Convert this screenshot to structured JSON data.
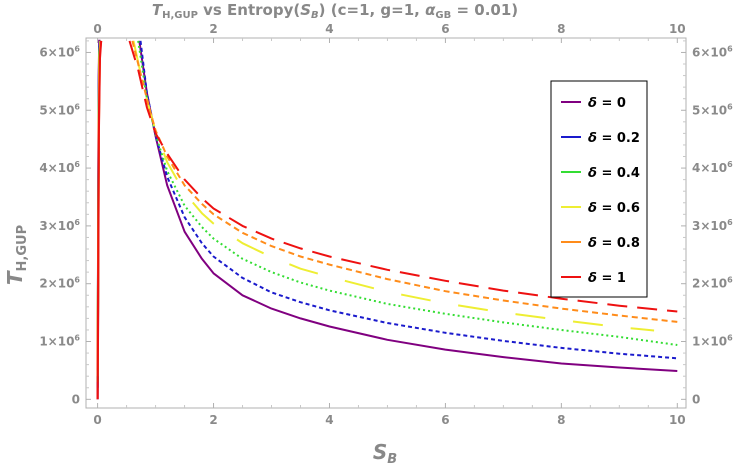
{
  "chart_data": {
    "type": "line",
    "title": {
      "prefix": "T",
      "prefix_sub": "H,GUP",
      "middle": " vs Entropy(",
      "s_main": "S",
      "s_sub": "B",
      "suffix": ") (c=1, g=1, ",
      "alpha": "α",
      "alpha_sub": "GB",
      "alpha_value": " = 0.01)"
    },
    "xlabel": {
      "main": "S",
      "sub": "B"
    },
    "ylabel": {
      "main": "T",
      "sub": "H,GUP"
    },
    "xlim": [
      -0.2,
      10.15
    ],
    "ylim": [
      -150000,
      6250000
    ],
    "x_ticks": [
      {
        "value": 0,
        "label": "0"
      },
      {
        "value": 2,
        "label": "2"
      },
      {
        "value": 4,
        "label": "4"
      },
      {
        "value": 6,
        "label": "6"
      },
      {
        "value": 8,
        "label": "8"
      },
      {
        "value": 10,
        "label": "10"
      }
    ],
    "y_ticks": [
      {
        "value": 0,
        "label": "0",
        "exp": ""
      },
      {
        "value": 1000000,
        "label": "1×10",
        "exp": "6"
      },
      {
        "value": 2000000,
        "label": "2×10",
        "exp": "6"
      },
      {
        "value": 3000000,
        "label": "3×10",
        "exp": "6"
      },
      {
        "value": 4000000,
        "label": "4×10",
        "exp": "6"
      },
      {
        "value": 5000000,
        "label": "5×10",
        "exp": "6"
      },
      {
        "value": 6000000,
        "label": "6×10",
        "exp": "6"
      }
    ],
    "legend_position": "top-right",
    "series": [
      {
        "name": "δ = 0",
        "delta_symbol": "δ",
        "delta_value": " = 0",
        "color": "#800080",
        "dash": "",
        "x": [
          0.72,
          0.85,
          1.0,
          1.2,
          1.5,
          1.8,
          2.0,
          2.5,
          3.0,
          3.5,
          4.0,
          5.0,
          6.0,
          7.0,
          8.0,
          9.0,
          10.0
        ],
        "y": [
          6200000,
          5300000,
          4550000,
          3700000,
          2900000,
          2430000,
          2180000,
          1800000,
          1570000,
          1400000,
          1260000,
          1030000,
          860000,
          730000,
          620000,
          550000,
          490000
        ]
      },
      {
        "name": "δ = 0.2",
        "delta_symbol": "δ",
        "delta_value": " = 0.2",
        "color": "#1a1acc",
        "dash": "4,3",
        "x": [
          0.74,
          0.85,
          1.0,
          1.2,
          1.5,
          1.8,
          2.0,
          2.5,
          3.0,
          3.5,
          4.0,
          5.0,
          6.0,
          7.0,
          8.0,
          9.0,
          10.0
        ],
        "y": [
          6200000,
          5300000,
          4560000,
          3850000,
          3150000,
          2700000,
          2470000,
          2100000,
          1850000,
          1680000,
          1540000,
          1320000,
          1150000,
          1010000,
          890000,
          790000,
          710000
        ]
      },
      {
        "name": "δ = 0.4",
        "delta_symbol": "δ",
        "delta_value": " = 0.4",
        "color": "#33dd33",
        "dash": "2,3",
        "x": [
          0.7,
          0.85,
          1.0,
          1.2,
          1.5,
          1.8,
          2.0,
          2.5,
          3.0,
          3.5,
          4.0,
          5.0,
          6.0,
          7.0,
          8.0,
          9.0,
          10.0
        ],
        "y": [
          6200000,
          5200000,
          4580000,
          3950000,
          3350000,
          2980000,
          2780000,
          2430000,
          2200000,
          2020000,
          1880000,
          1650000,
          1480000,
          1330000,
          1200000,
          1080000,
          940000
        ]
      },
      {
        "name": "δ = 0.6",
        "delta_symbol": "δ",
        "delta_value": " = 0.6",
        "color": "#eeee33",
        "dash": "30,28",
        "x": [
          0.62,
          0.75,
          0.9,
          1.0,
          1.2,
          1.5,
          1.8,
          2.0,
          2.5,
          3.0,
          3.5,
          4.0,
          5.0,
          6.0,
          7.0,
          8.0,
          9.0,
          9.6
        ],
        "y": [
          6200000,
          5600000,
          5000000,
          4650000,
          4100000,
          3570000,
          3220000,
          3040000,
          2700000,
          2460000,
          2260000,
          2120000,
          1860000,
          1660000,
          1500000,
          1370000,
          1250000,
          1190000
        ]
      },
      {
        "name": "δ = 0.8",
        "delta_symbol": "δ",
        "delta_value": " = 0.8",
        "color": "#ff8c1a",
        "dash": "6,4",
        "x": [
          0.6,
          0.75,
          0.9,
          1.0,
          1.2,
          1.5,
          1.8,
          2.0,
          2.5,
          3.0,
          3.5,
          4.0,
          5.0,
          6.0,
          7.0,
          8.0,
          9.0,
          10.0
        ],
        "y": [
          6200000,
          5600000,
          5000000,
          4650000,
          4200000,
          3700000,
          3380000,
          3200000,
          2880000,
          2650000,
          2470000,
          2330000,
          2080000,
          1870000,
          1710000,
          1570000,
          1450000,
          1340000
        ]
      },
      {
        "name": "δ = 1",
        "delta_symbol": "δ",
        "delta_value": " = 1",
        "color": "#ee1111",
        "dash": "20,10",
        "x": [
          0.55,
          0.7,
          0.85,
          1.0,
          1.2,
          1.5,
          1.8,
          2.0,
          2.5,
          3.0,
          3.5,
          4.0,
          5.0,
          6.0,
          7.0,
          8.0,
          9.0,
          10.0
        ],
        "y": [
          6200000,
          5700000,
          5050000,
          4600000,
          4250000,
          3800000,
          3480000,
          3300000,
          3000000,
          2780000,
          2610000,
          2470000,
          2240000,
          2050000,
          1880000,
          1740000,
          1620000,
          1520000
        ]
      }
    ],
    "spike_series": [
      {
        "color": "#800080",
        "x": [
          0.0,
          0.005,
          0.01,
          0.02,
          0.03,
          0.04,
          0.05
        ],
        "y": [
          0,
          900000,
          2800000,
          5600000,
          6200000,
          6200000,
          6200000
        ]
      },
      {
        "color": "#1a1acc",
        "x": [
          0.0,
          0.005,
          0.01,
          0.02,
          0.03,
          0.05
        ],
        "y": [
          200000,
          1200000,
          3000000,
          5400000,
          6100000,
          6200000
        ]
      },
      {
        "color": "#33dd33",
        "x": [
          0.0,
          0.01,
          0.02,
          0.03,
          0.05
        ],
        "y": [
          300000,
          2600000,
          5000000,
          6000000,
          6200000
        ]
      },
      {
        "color": "#eeee33",
        "x": [
          0.0,
          0.01,
          0.02,
          0.03,
          0.05
        ],
        "y": [
          400000,
          2400000,
          4800000,
          5900000,
          6200000
        ]
      },
      {
        "color": "#ff8c1a",
        "x": [
          0.0,
          0.01,
          0.02,
          0.04,
          0.06
        ],
        "y": [
          500000,
          2300000,
          4700000,
          6000000,
          6200000
        ]
      },
      {
        "color": "#ee1111",
        "x": [
          0.0,
          0.01,
          0.02,
          0.04,
          0.06
        ],
        "y": [
          0,
          2000000,
          4600000,
          5900000,
          6200000
        ]
      }
    ]
  }
}
